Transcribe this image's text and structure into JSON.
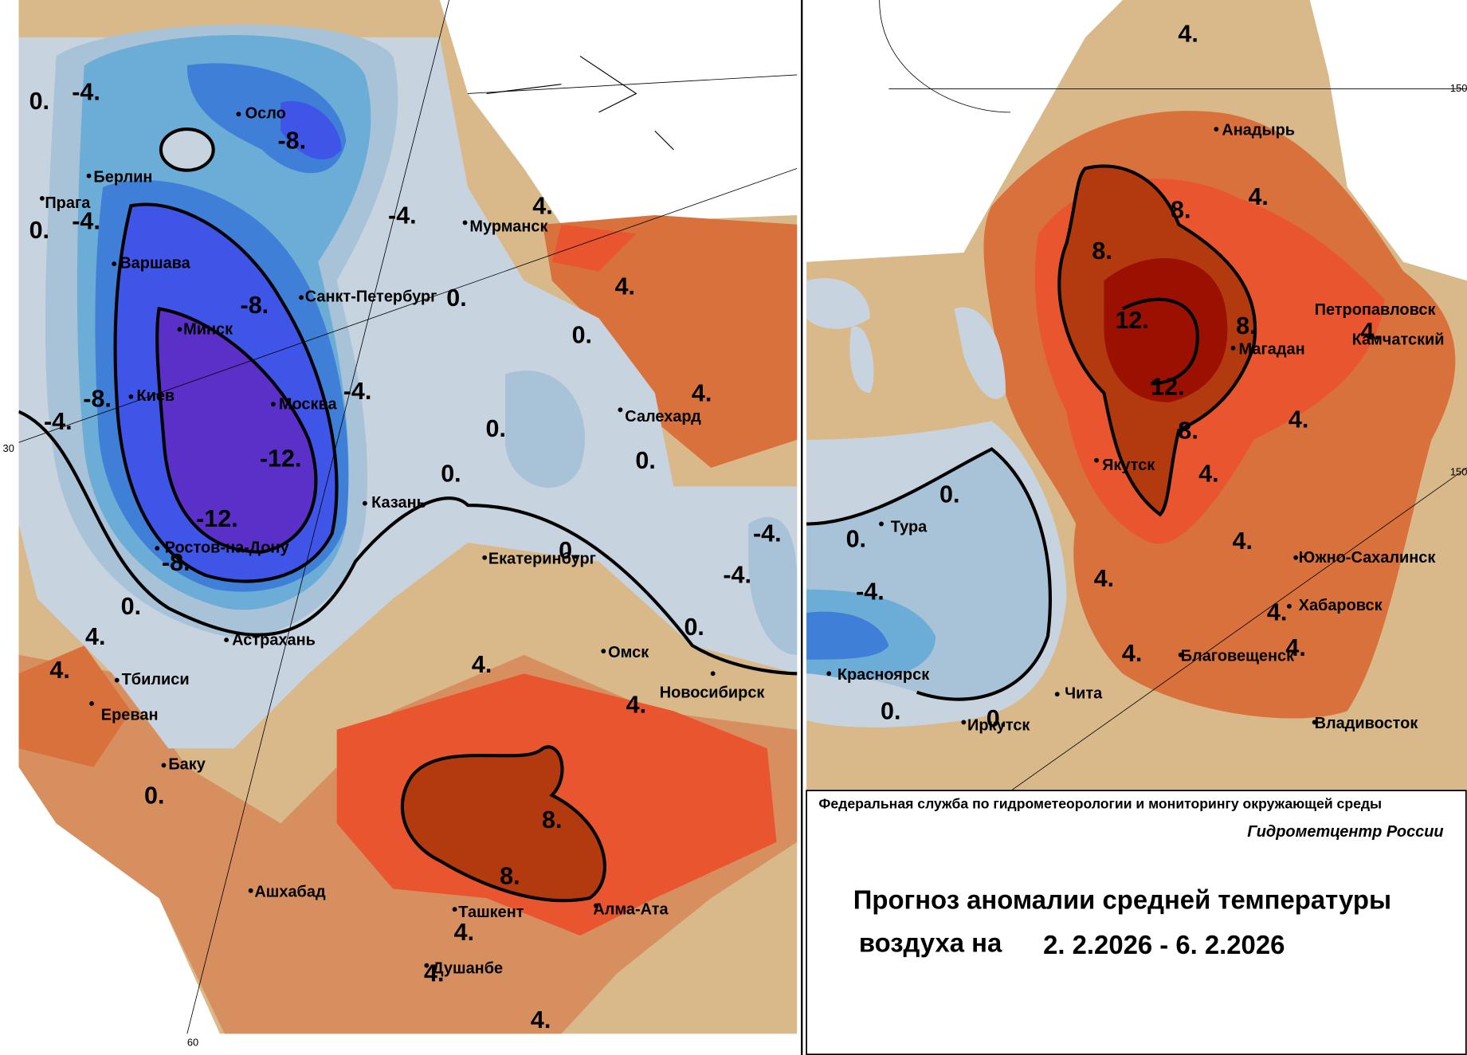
{
  "grid_labels": [
    "30",
    "60",
    "150",
    "150"
  ],
  "cities": [
    "Осло",
    "Берлин",
    "Прага",
    "Варшава",
    "Минск",
    "Киев",
    "Москва",
    "Санкт-Петербург",
    "Мурманск",
    "Казань",
    "Ростов-на-Дону",
    "Астрахань",
    "Тбилиси",
    "Ереван",
    "Баку",
    "Салехард",
    "Екатеринбург",
    "Омск",
    "Новосибирск",
    "Ашхабад",
    "Ташкент",
    "Алма-Ата",
    "Душанбе",
    "Анадырь",
    "Петропавловск",
    "Камчатский",
    "Магадан",
    "Якутск",
    "Тура",
    "Южно-Сахалинск",
    "Хабаровск",
    "Благовещенск",
    "Красноярск",
    "Чита",
    "Иркутск",
    "Владивосток"
  ],
  "contour_labels": [
    "0.",
    "-4.",
    "-8.",
    "0.",
    "-4.",
    "-4.",
    "4.",
    "-8.",
    "0.",
    "4.",
    "0.",
    "-8.",
    "-4.",
    "-4.",
    "4.",
    "0.",
    "-12.",
    "0.",
    "0.",
    "-12.",
    "-4.",
    "-8.",
    "0.",
    "-4.",
    "0.",
    "4.",
    "0.",
    "4.",
    "4.",
    "4.",
    "0.",
    "8.",
    "8.",
    "4.",
    "4.",
    "4.",
    "4.",
    "4.",
    "8.",
    "8.",
    "12.",
    "8.",
    "4.",
    "12.",
    "4.",
    "8.",
    "0.",
    "4.",
    "0.",
    "4.",
    "-4.",
    "4.",
    "4.",
    "4.",
    "4.",
    "0.",
    "0."
  ],
  "footer": {
    "agency": "Федеральная служба по гидрометеорологии и мониторингу окружающей среды",
    "center": "Гидрометцентр России",
    "title_line1": "Прогноз аномалии средней температуры",
    "title_line2_prefix": "воздуха на",
    "period": "2. 2.2026 -  6. 2.2026"
  }
}
